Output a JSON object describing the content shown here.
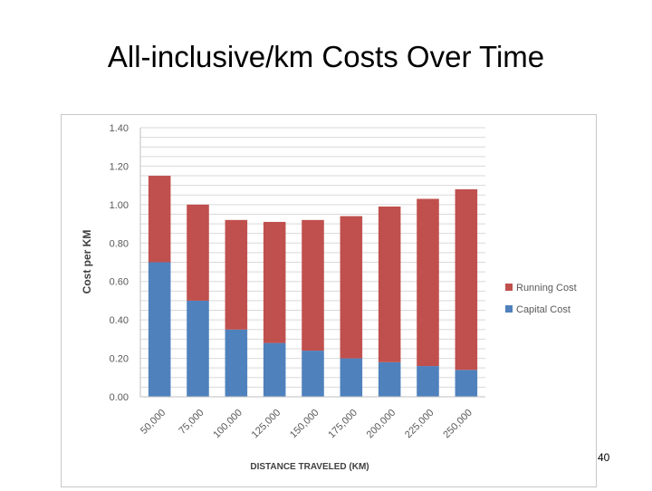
{
  "slide": {
    "title": "All-inclusive/km Costs Over Time",
    "page_number": "40"
  },
  "colors": {
    "capital": "#4f81bd",
    "running": "#c0504d",
    "grid": "#d9d9d9",
    "axis_text": "#595959"
  },
  "chart_data": {
    "type": "bar",
    "stacked": true,
    "title": "",
    "xlabel": "DISTANCE TRAVELED (KM)",
    "ylabel": "Cost per KM",
    "ylim": [
      0,
      1.4
    ],
    "yticks": [
      "0.00",
      "0.20",
      "0.40",
      "0.60",
      "0.80",
      "1.00",
      "1.20",
      "1.40"
    ],
    "ytick_values": [
      0,
      0.2,
      0.4,
      0.6,
      0.8,
      1.0,
      1.2,
      1.4
    ],
    "minor_grid_step": 0.05,
    "grid": true,
    "legend_position": "right",
    "categories": [
      "50,000",
      "75,000",
      "100,000",
      "125,000",
      "150,000",
      "175,000",
      "200,000",
      "225,000",
      "250,000"
    ],
    "series": [
      {
        "name": "Capital Cost",
        "values": [
          0.7,
          0.5,
          0.35,
          0.28,
          0.24,
          0.2,
          0.18,
          0.16,
          0.14
        ]
      },
      {
        "name": "Running Cost",
        "values": [
          0.45,
          0.5,
          0.57,
          0.63,
          0.68,
          0.74,
          0.81,
          0.87,
          0.94
        ]
      }
    ]
  }
}
